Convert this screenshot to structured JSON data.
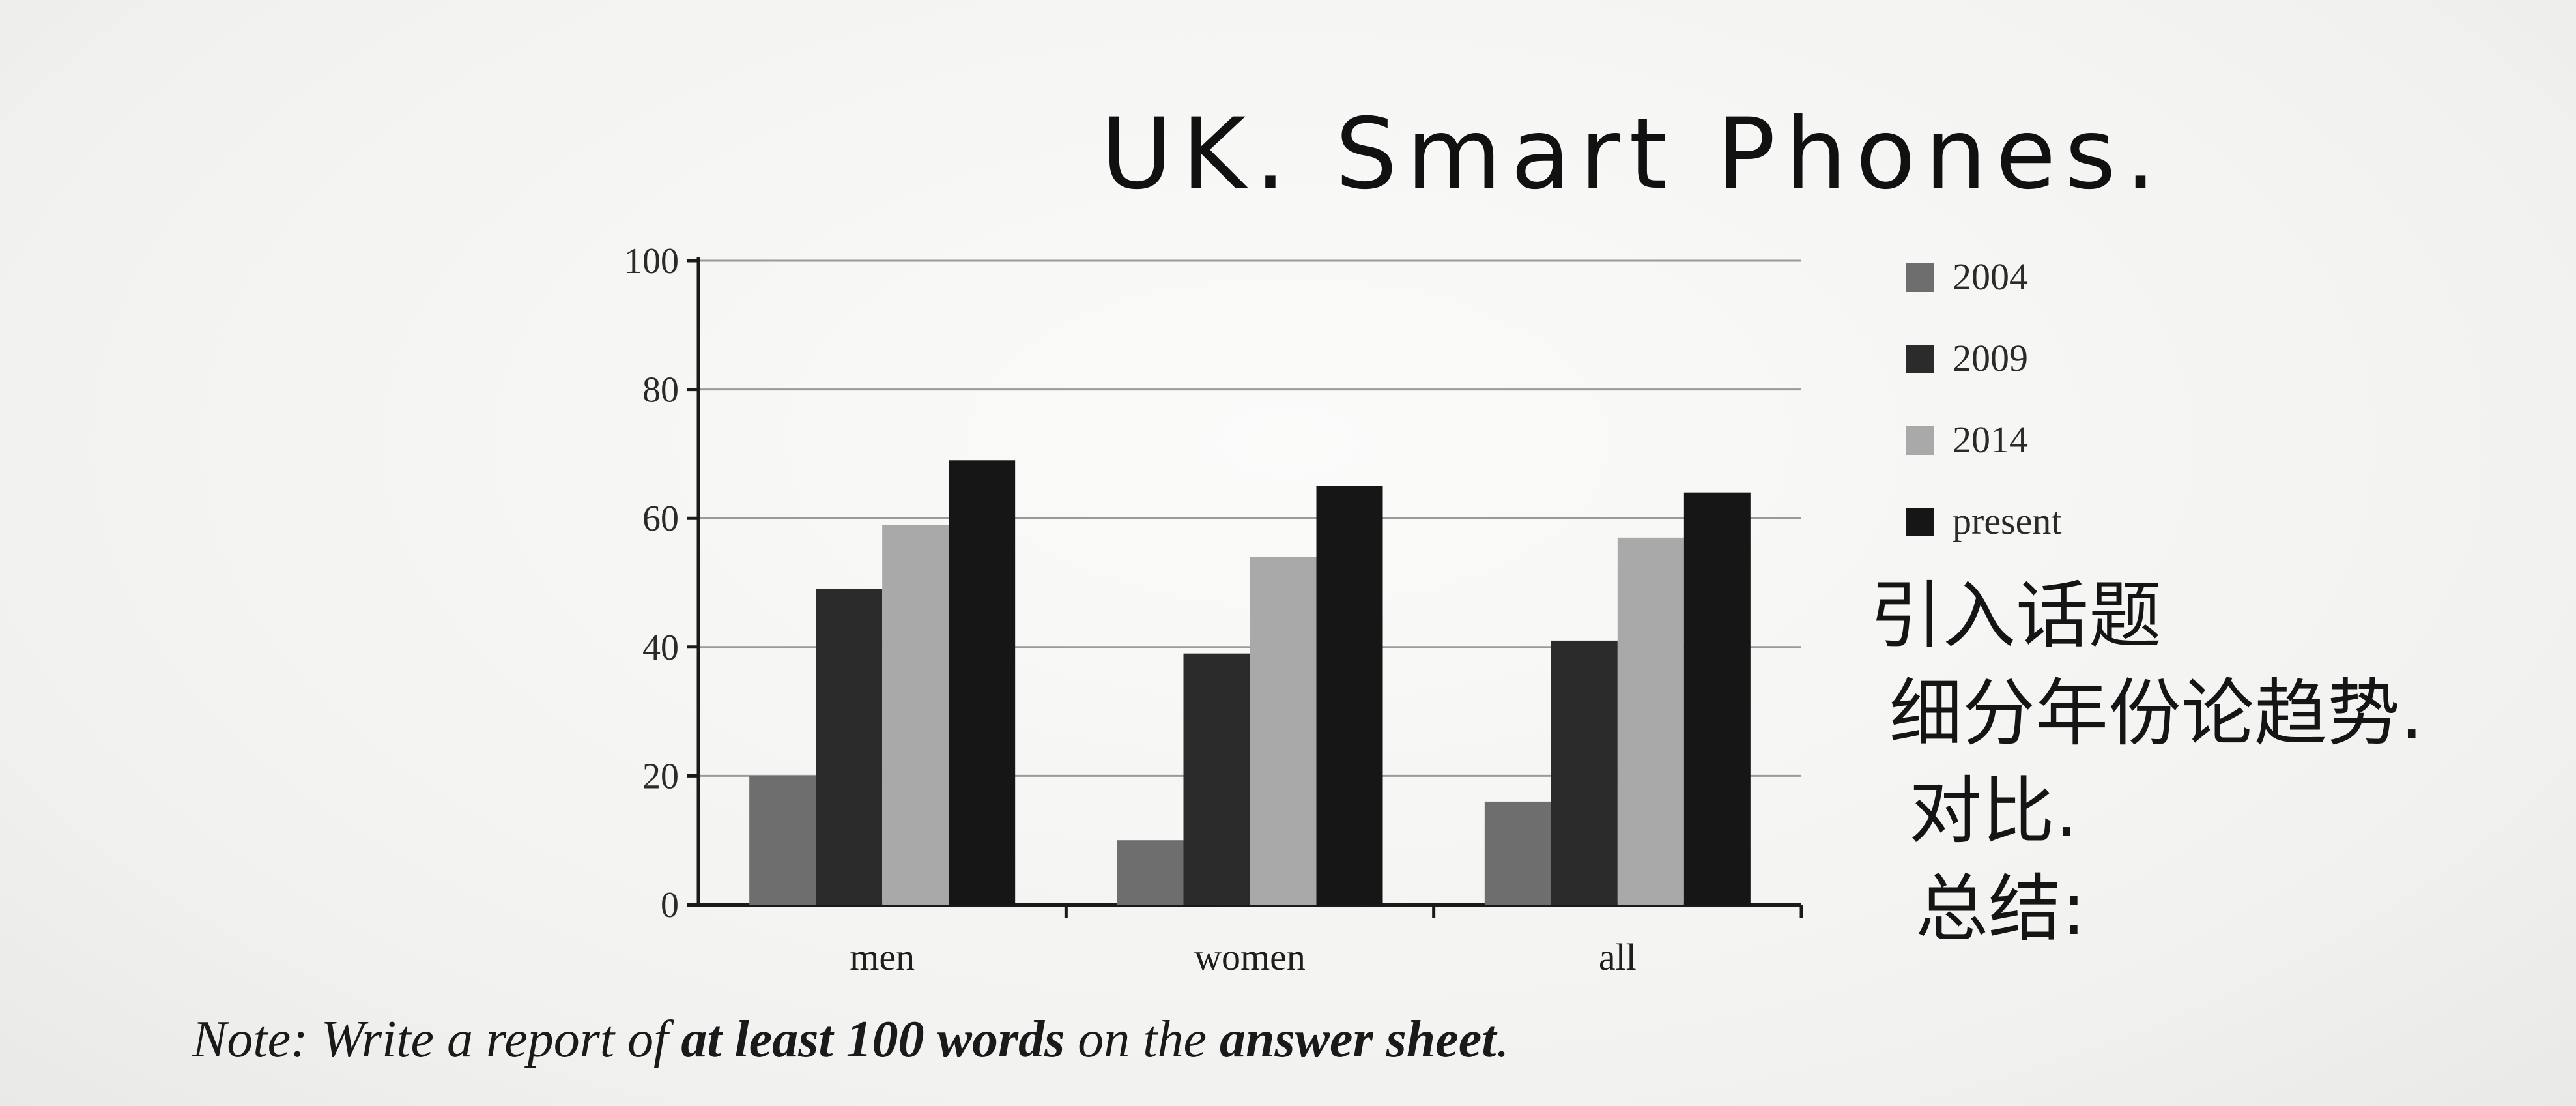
{
  "handwriting": {
    "title": "UK. Smart Phones.",
    "notes": [
      "引入话题",
      "细分年份论趋势.",
      "对比.",
      "总结:"
    ]
  },
  "note": {
    "prefix": "Note",
    "colon": ":",
    "part1": " Write a report of ",
    "bold1": "at least 100 words",
    "part2": " on the ",
    "bold2": "answer sheet",
    "end": "."
  },
  "chart_data": {
    "type": "bar",
    "categories": [
      "men",
      "women",
      "all"
    ],
    "series": [
      {
        "name": "2004",
        "values": [
          20,
          10,
          16
        ],
        "color": "#6e6e6e"
      },
      {
        "name": "2009",
        "values": [
          49,
          39,
          41
        ],
        "color": "#2b2b2b"
      },
      {
        "name": "2014",
        "values": [
          59,
          54,
          57
        ],
        "color": "#a9a9a9"
      },
      {
        "name": "present",
        "values": [
          69,
          65,
          64
        ],
        "color": "#161616"
      }
    ],
    "ylim": [
      0,
      100
    ],
    "yticks": [
      0,
      20,
      40,
      60,
      80,
      100
    ],
    "grid": true,
    "legend": "right"
  }
}
